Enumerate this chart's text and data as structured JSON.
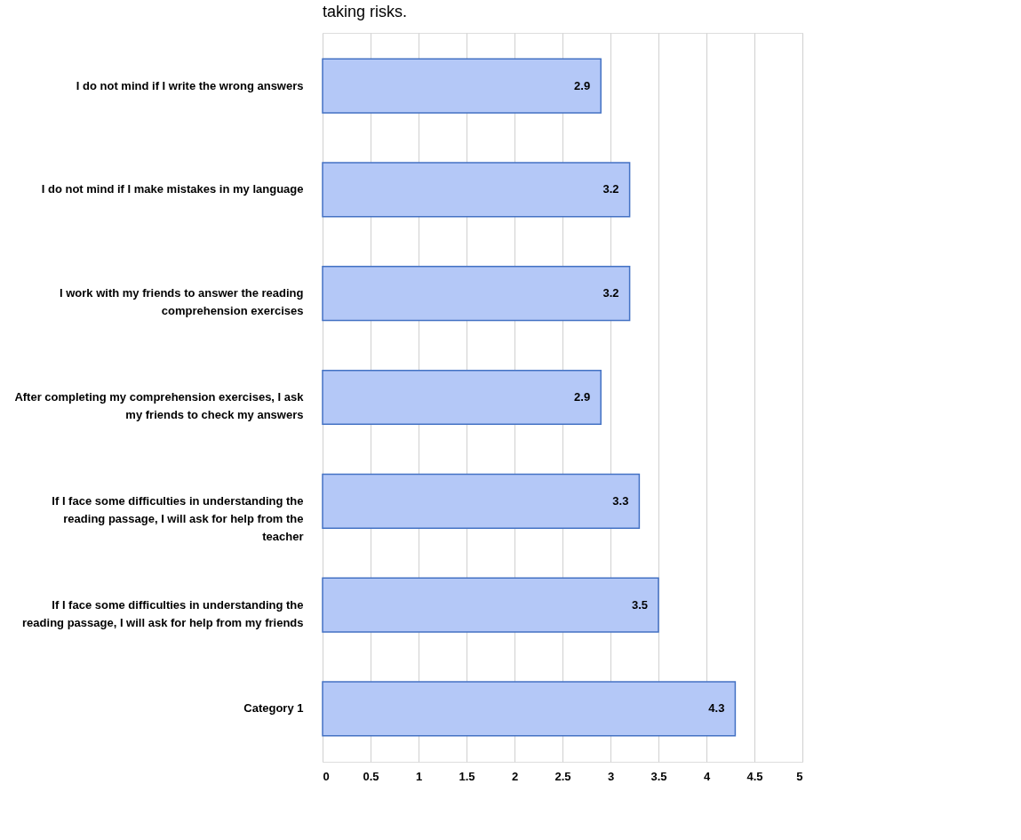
{
  "chart_data": {
    "type": "bar",
    "orientation": "horizontal",
    "title": "taking risks.",
    "categories": [
      "I do not mind if I write the wrong answers",
      "I do not mind if I make mistakes in my language",
      "I work with my friends to answer the reading comprehension exercises",
      "After completing my comprehension exercises, I ask my friends to check my answers",
      "If  I face some difficulties in understanding  the reading passage, I will ask for help from the teacher",
      "If  I face some difficulties in understanding  the reading passage, I will ask for help from my friends",
      "Category 1"
    ],
    "values": [
      2.9,
      3.2,
      3.2,
      2.9,
      3.3,
      3.5,
      4.3
    ],
    "color": "#b4c8f7",
    "xlim": [
      0,
      5
    ],
    "xticks": [
      0,
      0.5,
      1,
      1.5,
      2,
      2.5,
      3,
      3.5,
      4,
      4.5,
      5
    ],
    "grid": "x",
    "data_labels": true
  }
}
